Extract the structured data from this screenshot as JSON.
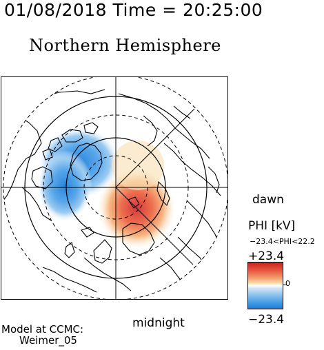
{
  "header": {
    "timestamp": "01/08/2018 Time = 20:25:00",
    "hemisphere_title": "Northern Hemisphere"
  },
  "map": {
    "bottom_label": "midnight",
    "right_label": "dawn"
  },
  "colorbar": {
    "title": "PHI [kV]",
    "range_text": "−23.4<PHI<22.2",
    "max_label": "+23.4",
    "zero_label": "0",
    "min_label": "−23.4",
    "colors": {
      "max": "#cc2020",
      "zero": "#ffffff",
      "min": "#1e7ed8"
    }
  },
  "model": {
    "line1": "Model at CCMC:",
    "line2": "Weimer_05"
  }
}
